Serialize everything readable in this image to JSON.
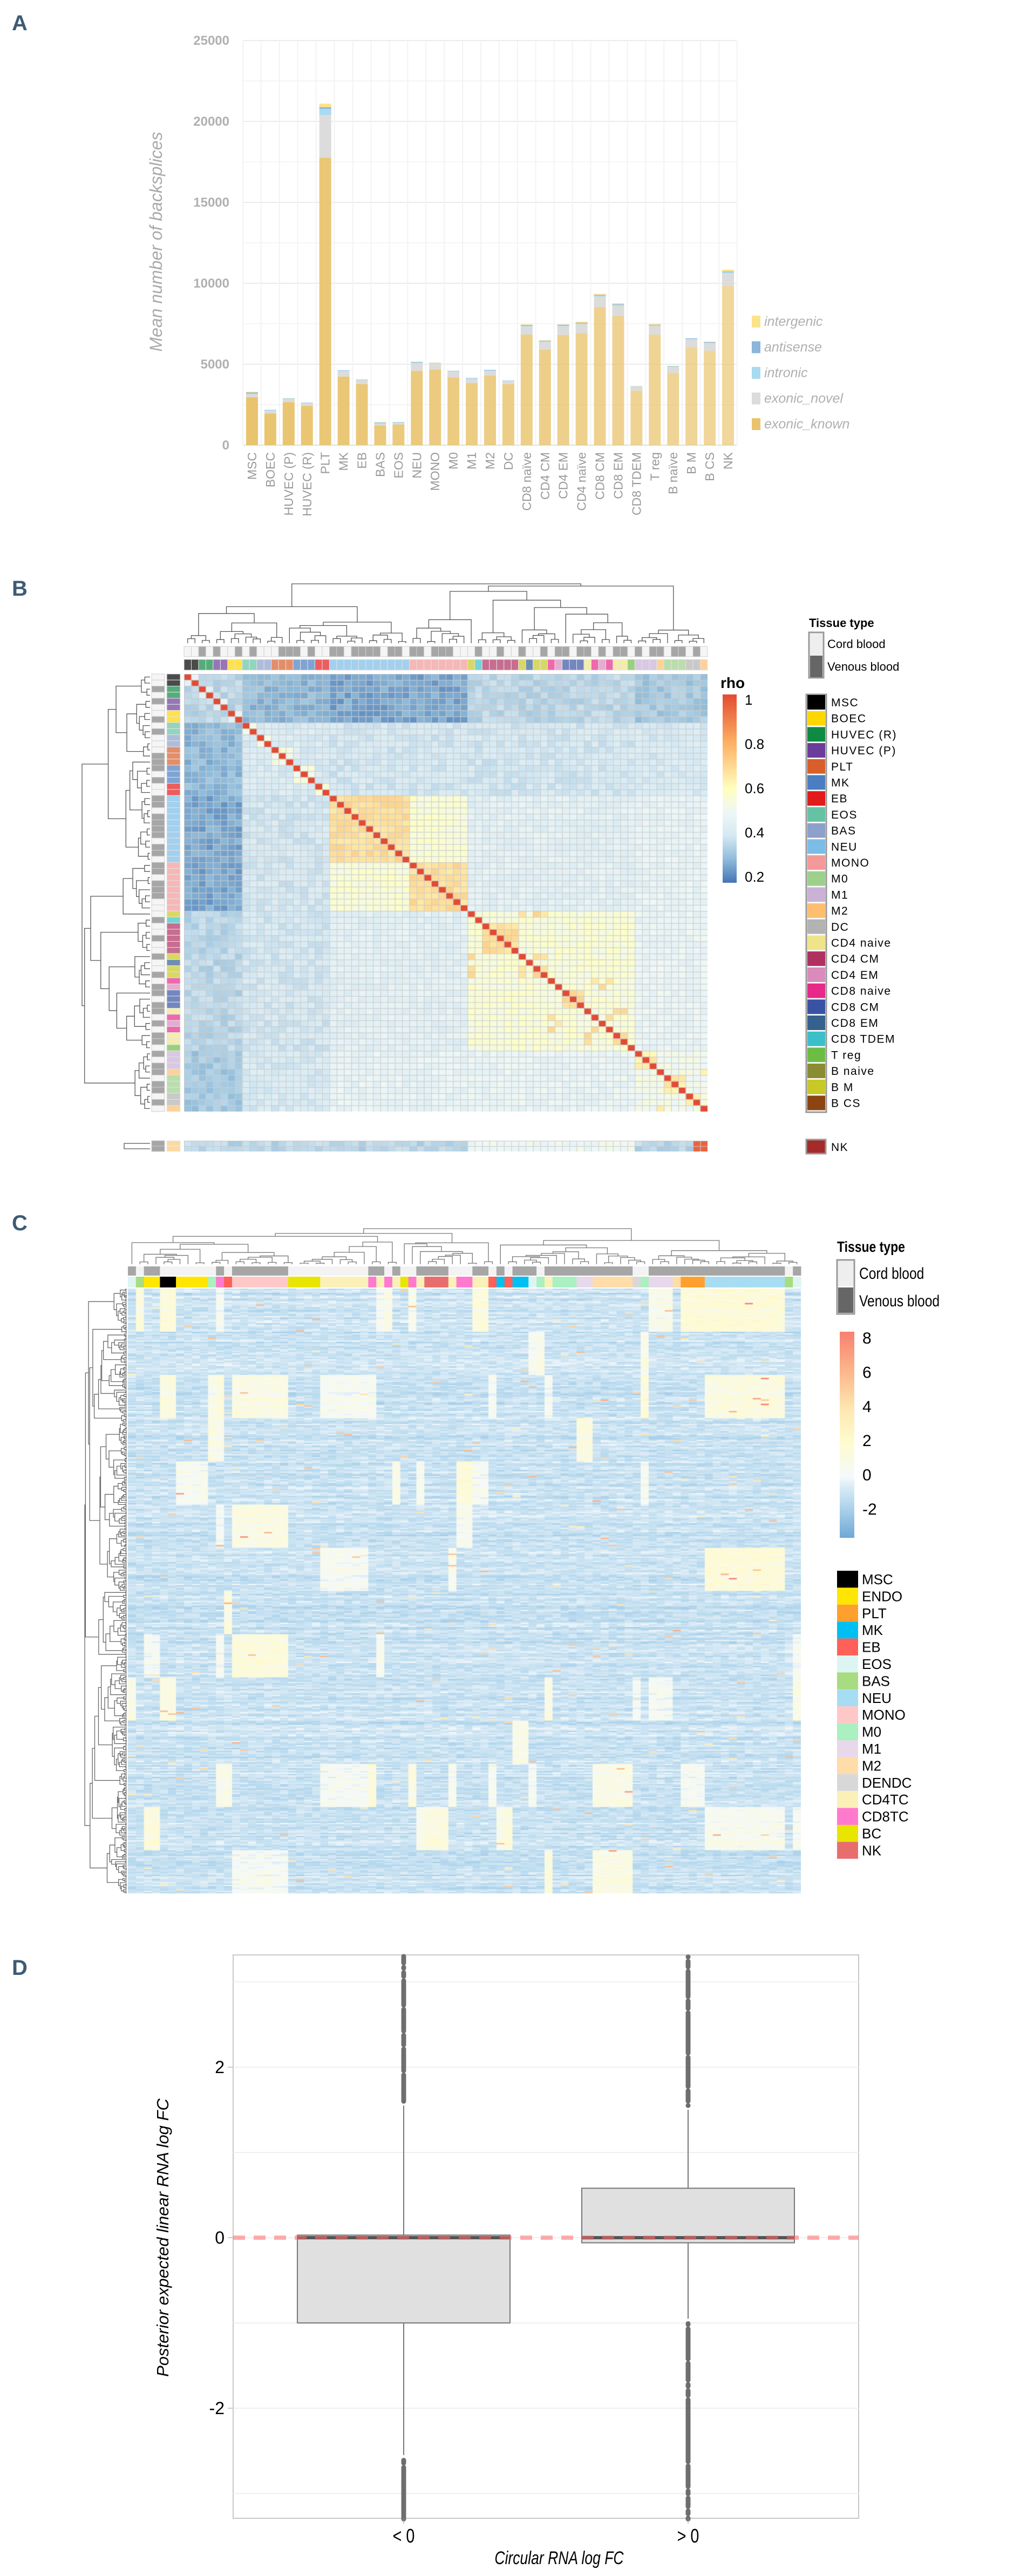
{
  "panels": {
    "a": "A",
    "b": "B",
    "c": "C",
    "d": "D"
  },
  "chart_data": [
    {
      "type": "bar",
      "stacked": true,
      "title": "",
      "xlabel": "",
      "ylabel": "Mean number of backsplices",
      "ylim": [
        0,
        25000
      ],
      "yticks": [
        0,
        5000,
        10000,
        15000,
        20000,
        25000
      ],
      "grid": true,
      "legend_position": "right",
      "categories": [
        "MSC",
        "BOEC",
        "HUVEC (P)",
        "HUVEC (R)",
        "PLT",
        "MK",
        "EB",
        "BAS",
        "EOS",
        "NEU",
        "MONO",
        "M0",
        "M1",
        "M2",
        "DC",
        "CD8 naïve",
        "CD4 CM",
        "CD4 EM",
        "CD4 naïve",
        "CD8 CM",
        "CD8 EM",
        "CD8 TDEM",
        "T reg",
        "B naïve",
        "B M",
        "B CS",
        "NK"
      ],
      "series": [
        {
          "name": "exonic_known",
          "color": "#E9C46E",
          "values": [
            2950,
            1950,
            2660,
            2430,
            17760,
            4240,
            3770,
            1220,
            1280,
            4590,
            4680,
            4190,
            3840,
            4300,
            3770,
            6830,
            5910,
            6810,
            6920,
            8530,
            7990,
            3370,
            6830,
            4450,
            6060,
            5830,
            9830
          ]
        },
        {
          "name": "exonic_novel",
          "color": "#DCDCDC",
          "values": [
            200,
            180,
            180,
            150,
            2640,
            340,
            250,
            100,
            100,
            470,
            370,
            350,
            260,
            280,
            200,
            500,
            470,
            530,
            560,
            650,
            620,
            230,
            540,
            380,
            470,
            470,
            800
          ]
        },
        {
          "name": "intronic",
          "color": "#A9DAF0",
          "values": [
            50,
            30,
            30,
            20,
            380,
            30,
            20,
            70,
            40,
            50,
            20,
            30,
            30,
            40,
            20,
            50,
            40,
            60,
            40,
            60,
            60,
            20,
            40,
            30,
            40,
            40,
            60
          ]
        },
        {
          "name": "antisense",
          "color": "#8BB5DA",
          "values": [
            50,
            20,
            20,
            20,
            100,
            20,
            10,
            20,
            10,
            30,
            10,
            20,
            20,
            30,
            10,
            40,
            30,
            40,
            40,
            40,
            40,
            10,
            30,
            20,
            30,
            30,
            40
          ]
        },
        {
          "name": "intergenic",
          "color": "#FBE38C",
          "values": [
            50,
            0,
            10,
            0,
            220,
            0,
            20,
            20,
            0,
            20,
            20,
            0,
            0,
            0,
            0,
            40,
            30,
            20,
            70,
            70,
            60,
            20,
            60,
            20,
            0,
            30,
            110
          ]
        }
      ]
    },
    {
      "type": "heatmap",
      "title": "",
      "colorbar": {
        "title": "rho",
        "ticks": [
          "1",
          "0.8",
          "0.6",
          "0.4",
          "0.2"
        ],
        "range": [
          0.2,
          1
        ]
      },
      "tissue_legend": {
        "title": "Tissue type",
        "items": [
          {
            "label": "Cord blood",
            "color": "#EEEEEE"
          },
          {
            "label": "Venous blood",
            "color": "#666666"
          }
        ]
      },
      "cell_types": [
        {
          "label": "MSC",
          "color": "#000000"
        },
        {
          "label": "BOEC",
          "color": "#FFD700"
        },
        {
          "label": "HUVEC (R)",
          "color": "#0E8A43"
        },
        {
          "label": "HUVEC (P)",
          "color": "#6A3D9A"
        },
        {
          "label": "PLT",
          "color": "#D95F2A"
        },
        {
          "label": "MK",
          "color": "#4A7EC0"
        },
        {
          "label": "EB",
          "color": "#E31A1C"
        },
        {
          "label": "EOS",
          "color": "#66C2A5"
        },
        {
          "label": "BAS",
          "color": "#8DA0CB"
        },
        {
          "label": "NEU",
          "color": "#7CBDE8"
        },
        {
          "label": "MONO",
          "color": "#F4999A"
        },
        {
          "label": "M0",
          "color": "#9ED08B"
        },
        {
          "label": "M1",
          "color": "#C9B2D6"
        },
        {
          "label": "M2",
          "color": "#FDBF6F"
        },
        {
          "label": "DC",
          "color": "#B3B3B3"
        },
        {
          "label": "CD4 naive",
          "color": "#EFE489"
        },
        {
          "label": "CD4 CM",
          "color": "#B03060"
        },
        {
          "label": "CD4 EM",
          "color": "#D98BBC"
        },
        {
          "label": "CD8 naive",
          "color": "#E7298A"
        },
        {
          "label": "CD8 CM",
          "color": "#3953A4"
        },
        {
          "label": "CD8 EM",
          "color": "#35618F"
        },
        {
          "label": "CD8 TDEM",
          "color": "#3CBFC8"
        },
        {
          "label": "T reg",
          "color": "#6DBD45"
        },
        {
          "label": "B naive",
          "color": "#8A8C32"
        },
        {
          "label": "B M",
          "color": "#C8C826"
        },
        {
          "label": "B CS",
          "color": "#8B4513"
        }
      ],
      "separate_row": {
        "label": "NK",
        "color": "#A52A2A"
      }
    },
    {
      "type": "heatmap",
      "title": "",
      "colorbar": {
        "title": "",
        "ticks": [
          "8",
          "6",
          "4",
          "2",
          "0",
          "-2"
        ],
        "range": [
          -3.5,
          8.4
        ]
      },
      "tissue_legend": {
        "title": "Tissue type",
        "items": [
          {
            "label": "Cord blood",
            "color": "#EEEEEE"
          },
          {
            "label": "Venous blood",
            "color": "#666666"
          }
        ]
      },
      "cell_types": [
        {
          "label": "MSC",
          "color": "#000000"
        },
        {
          "label": "ENDO",
          "color": "#FFE600"
        },
        {
          "label": "PLT",
          "color": "#FFA02E"
        },
        {
          "label": "MK",
          "color": "#00BFF3"
        },
        {
          "label": "EB",
          "color": "#FF6058"
        },
        {
          "label": "EOS",
          "color": "#DDF5F2"
        },
        {
          "label": "BAS",
          "color": "#A8DC80"
        },
        {
          "label": "NEU",
          "color": "#A6DDF3"
        },
        {
          "label": "MONO",
          "color": "#FFC8C8"
        },
        {
          "label": "M0",
          "color": "#AAF0C0"
        },
        {
          "label": "M1",
          "color": "#E8D8EC"
        },
        {
          "label": "M2",
          "color": "#FFDCA8"
        },
        {
          "label": "DENDC",
          "color": "#D8D8D8"
        },
        {
          "label": "CD4TC",
          "color": "#FAF0B8"
        },
        {
          "label": "CD8TC",
          "color": "#FF7ACF"
        },
        {
          "label": "BC",
          "color": "#E8E600"
        },
        {
          "label": "NK",
          "color": "#E86E6E"
        }
      ]
    },
    {
      "type": "box",
      "title": "",
      "xlabel": "Circular RNA log FC",
      "ylabel": "Posterior expected linear RNA log FC",
      "ylim": [
        -3.3,
        3.3
      ],
      "yticks": [
        "2",
        "0",
        "-2"
      ],
      "ytick_values": [
        2,
        0,
        -2
      ],
      "reference_line": {
        "y": 0,
        "color": "#FF6B6B",
        "style": "dashed"
      },
      "categories": [
        "< 0",
        "> 0"
      ],
      "boxes": [
        {
          "q1": -1.0,
          "median": 0.0,
          "q3": 0.03,
          "whisker_low": -2.55,
          "whisker_high": 1.55,
          "outliers": [
            [
              1.6,
              3.3
            ],
            [
              -3.3,
              -2.6
            ]
          ]
        },
        {
          "q1": -0.06,
          "median": 0.0,
          "q3": 0.58,
          "whisker_low": -0.95,
          "whisker_high": 1.5,
          "outliers": [
            [
              1.55,
              3.3
            ],
            [
              -3.3,
              -1.0
            ]
          ]
        }
      ]
    }
  ]
}
